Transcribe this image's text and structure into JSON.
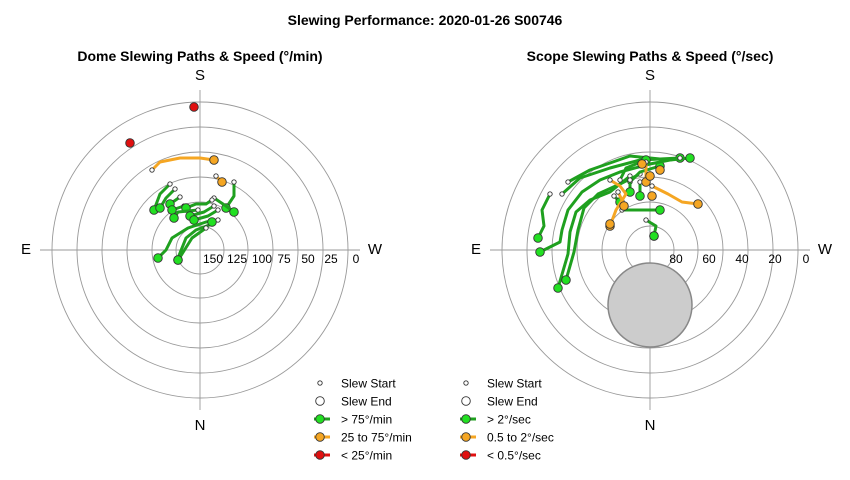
{
  "figure_title": "Slewing Performance: 2020-01-26 S00746",
  "colors": {
    "fast": "#1fa01f",
    "fast_marker": "#22e022",
    "medium": "#f5a623",
    "slow": "#e01010",
    "grid": "#999999",
    "avoid_zone": "#cccccc"
  },
  "chart_data": [
    {
      "type": "polar-path",
      "title": "Dome Slewing Paths & Speed (°/min)",
      "compass": {
        "top": "S",
        "bottom": "N",
        "left": "E",
        "right": "W"
      },
      "radial_tick_labels": [
        "150",
        "125",
        "100",
        "75",
        "50",
        "25",
        "0"
      ],
      "legend": [
        {
          "label": "Slew Start",
          "style": "start"
        },
        {
          "label": "Slew End",
          "style": "end"
        },
        {
          "label": "> 75°/min",
          "style": "fast"
        },
        {
          "label": "25 to 75°/min",
          "style": "medium"
        },
        {
          "label": "< 25°/min",
          "style": "slow"
        }
      ],
      "paths": [
        {
          "category": "medium",
          "points": [
            [
              -48,
              -80
            ],
            [
              -40,
              -88
            ],
            [
              -20,
              -92
            ],
            [
              0,
              -92
            ],
            [
              14,
              -90
            ]
          ]
        },
        {
          "category": "medium",
          "points": [
            [
              16,
              -74
            ],
            [
              22,
              -68
            ]
          ]
        },
        {
          "category": "slow",
          "points": [
            [
              -6,
              -143
            ],
            [
              -6,
              -143
            ]
          ]
        },
        {
          "category": "slow",
          "points": [
            [
              -70,
              -107
            ],
            [
              -70,
              -107
            ]
          ]
        },
        {
          "category": "fast",
          "points": [
            [
              -30,
              -66
            ],
            [
              -40,
              -56
            ],
            [
              -46,
              -40
            ]
          ]
        },
        {
          "category": "fast",
          "points": [
            [
              -25,
              -61
            ],
            [
              -34,
              -52
            ],
            [
              -40,
              -42
            ]
          ]
        },
        {
          "category": "fast",
          "points": [
            [
              -20,
              -53
            ],
            [
              -30,
              -46
            ]
          ]
        },
        {
          "category": "fast",
          "points": [
            [
              -16,
              -44
            ],
            [
              -28,
              -40
            ]
          ]
        },
        {
          "category": "fast",
          "points": [
            [
              34,
              -68
            ],
            [
              34,
              -54
            ],
            [
              26,
              -42
            ]
          ]
        },
        {
          "category": "fast",
          "points": [
            [
              14,
              -52
            ],
            [
              26,
              -44
            ],
            [
              34,
              -38
            ]
          ]
        },
        {
          "category": "fast",
          "points": [
            [
              12,
              -50
            ],
            [
              6,
              -46
            ],
            [
              -4,
              -46
            ],
            [
              -14,
              -42
            ]
          ]
        },
        {
          "category": "fast",
          "points": [
            [
              -2,
              -40
            ],
            [
              -22,
              -38
            ],
            [
              -26,
              -32
            ]
          ]
        },
        {
          "category": "fast",
          "points": [
            [
              14,
              -44
            ],
            [
              4,
              -38
            ],
            [
              -10,
              -34
            ]
          ]
        },
        {
          "category": "fast",
          "points": [
            [
              18,
              -40
            ],
            [
              8,
              -34
            ],
            [
              -6,
              -30
            ]
          ]
        },
        {
          "category": "fast",
          "points": [
            [
              18,
              -30
            ],
            [
              6,
              -28
            ],
            [
              -12,
              -22
            ],
            [
              -28,
              -12
            ],
            [
              -34,
              0
            ],
            [
              -42,
              8
            ]
          ]
        },
        {
          "category": "fast",
          "points": [
            [
              12,
              -26
            ],
            [
              -4,
              -20
            ],
            [
              -14,
              -12
            ],
            [
              -22,
              8
            ],
            [
              -22,
              10
            ]
          ]
        },
        {
          "category": "fast",
          "points": [
            [
              6,
              -22
            ],
            [
              -8,
              -12
            ],
            [
              -18,
              4
            ],
            [
              -22,
              10
            ]
          ]
        },
        {
          "category": "fast",
          "points": [
            [
              12,
              -28
            ],
            [
              12,
              -28
            ]
          ]
        }
      ]
    },
    {
      "type": "polar-path",
      "title": "Scope Slewing Paths & Speed (°/sec)",
      "compass": {
        "top": "S",
        "bottom": "N",
        "left": "E",
        "right": "W"
      },
      "radial_tick_labels": [
        "80",
        "60",
        "40",
        "20",
        "0"
      ],
      "legend": [
        {
          "label": "Slew Start",
          "style": "start"
        },
        {
          "label": "Slew End",
          "style": "end"
        },
        {
          "label": "> 2°/sec",
          "style": "fast"
        },
        {
          "label": "0.5 to 2°/sec",
          "style": "medium"
        },
        {
          "label": "< 0.5°/sec",
          "style": "slow"
        }
      ],
      "paths": [
        {
          "category": "fast",
          "points": [
            [
              -100,
              -56
            ],
            [
              -108,
              -40
            ],
            [
              -106,
              -24
            ],
            [
              -112,
              -12
            ]
          ]
        },
        {
          "category": "fast",
          "points": [
            [
              -88,
              -56
            ],
            [
              -70,
              -72
            ],
            [
              -40,
              -82
            ],
            [
              -10,
              -90
            ],
            [
              30,
              -92
            ]
          ]
        },
        {
          "category": "fast",
          "points": [
            [
              -82,
              -68
            ],
            [
              -60,
              -80
            ],
            [
              -20,
              -94
            ],
            [
              20,
              -90
            ],
            [
              40,
              -92
            ]
          ]
        },
        {
          "category": "fast",
          "points": [
            [
              -20,
              -74
            ],
            [
              -40,
              -58
            ],
            [
              -60,
              -50
            ],
            [
              -74,
              -38
            ],
            [
              -80,
              -18
            ],
            [
              -82,
              4
            ],
            [
              -92,
              38
            ]
          ]
        },
        {
          "category": "fast",
          "points": [
            [
              -10,
              -76
            ],
            [
              -30,
              -66
            ],
            [
              -52,
              -56
            ],
            [
              -66,
              -42
            ],
            [
              -72,
              -20
            ],
            [
              -76,
              2
            ],
            [
              -84,
              30
            ]
          ]
        },
        {
          "category": "fast",
          "points": [
            [
              -20,
              -68
            ],
            [
              -10,
              -78
            ],
            [
              10,
              -84
            ]
          ]
        },
        {
          "category": "fast",
          "points": [
            [
              -30,
              -70
            ],
            [
              -24,
              -82
            ],
            [
              -4,
              -90
            ]
          ]
        },
        {
          "category": "fast",
          "points": [
            [
              30,
              -92
            ],
            [
              0,
              -86
            ],
            [
              -30,
              -78
            ],
            [
              -50,
              -70
            ],
            [
              -68,
              -58
            ],
            [
              -82,
              -40
            ],
            [
              -88,
              -20
            ],
            [
              -90,
              -8
            ],
            [
              -110,
              2
            ]
          ]
        },
        {
          "category": "fast",
          "points": [
            [
              -20,
              -70
            ],
            [
              -20,
              -58
            ]
          ]
        },
        {
          "category": "fast",
          "points": [
            [
              -10,
              -68
            ],
            [
              -10,
              -54
            ]
          ]
        },
        {
          "category": "fast",
          "points": [
            [
              -36,
              -54
            ],
            [
              -30,
              -48
            ]
          ]
        },
        {
          "category": "fast",
          "points": [
            [
              -28,
              -40
            ],
            [
              -16,
              -40
            ],
            [
              -6,
              -40
            ],
            [
              10,
              -40
            ]
          ]
        },
        {
          "category": "fast",
          "points": [
            [
              -4,
              -30
            ],
            [
              6,
              -24
            ],
            [
              4,
              -14
            ]
          ]
        },
        {
          "category": "fast",
          "points": [
            [
              4,
              -14
            ],
            [
              4,
              -14
            ]
          ]
        },
        {
          "category": "medium",
          "points": [
            [
              -40,
              -70
            ],
            [
              -30,
              -64
            ],
            [
              -24,
              -56
            ],
            [
              -34,
              -40
            ],
            [
              -40,
              -24
            ]
          ]
        },
        {
          "category": "medium",
          "points": [
            [
              2,
              -64
            ],
            [
              18,
              -56
            ],
            [
              32,
              -48
            ],
            [
              48,
              -46
            ]
          ]
        },
        {
          "category": "medium",
          "points": [
            [
              -4,
              -88
            ],
            [
              -4,
              -68
            ]
          ]
        },
        {
          "category": "medium",
          "points": [
            [
              -32,
              -58
            ],
            [
              -28,
              -50
            ],
            [
              -26,
              -44
            ]
          ]
        },
        {
          "category": "medium",
          "points": [
            [
              0,
              -74
            ],
            [
              0,
              -74
            ]
          ]
        },
        {
          "category": "medium",
          "points": [
            [
              2,
              -54
            ],
            [
              2,
              -54
            ]
          ]
        },
        {
          "category": "medium",
          "points": [
            [
              10,
              -80
            ],
            [
              10,
              -80
            ]
          ]
        },
        {
          "category": "medium",
          "points": [
            [
              -8,
              -86
            ],
            [
              -8,
              -86
            ]
          ]
        },
        {
          "category": "medium",
          "points": [
            [
              -40,
              -26
            ],
            [
              -40,
              -26
            ]
          ]
        }
      ],
      "avoid_zone": {
        "center": [
          0,
          55
        ],
        "radius": 42,
        "label": ""
      }
    }
  ]
}
